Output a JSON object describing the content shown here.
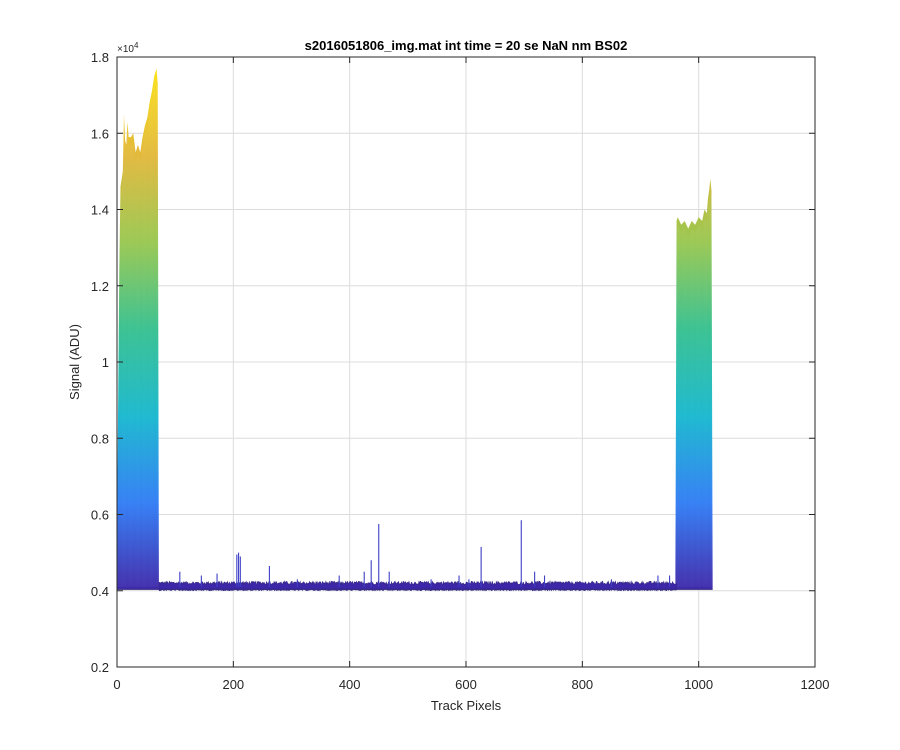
{
  "chart_data": {
    "type": "line",
    "title": "s2016051806_img.mat int time = 20 se  NaN nm BS02",
    "xlabel": "Track Pixels",
    "ylabel": "Signal (ADU)",
    "xlim": [
      0,
      1200
    ],
    "ylim": [
      2000,
      18000
    ],
    "y_multiplier": "×10",
    "y_multiplier_exp": "4",
    "x_ticks": [
      0,
      200,
      400,
      600,
      800,
      1000,
      1200
    ],
    "x_tick_labels": [
      "0",
      "200",
      "400",
      "600",
      "800",
      "1000",
      "1200"
    ],
    "y_ticks": [
      2000,
      4000,
      6000,
      8000,
      10000,
      12000,
      14000,
      16000,
      18000
    ],
    "y_tick_labels": [
      "0.2",
      "0.4",
      "0.6",
      "0.8",
      "1",
      "1.2",
      "1.4",
      "1.6",
      "1.8"
    ],
    "grid": true,
    "colormap": [
      "#3e26a8",
      "#2f7bf5",
      "#16b7cf",
      "#34c08f",
      "#98c74f",
      "#e2b83a",
      "#fbe21a"
    ],
    "baseline_level": 4100,
    "regions": [
      {
        "name": "left",
        "x_start": 0,
        "x_end": 72,
        "envelope_x": [
          0,
          2,
          4,
          6,
          8,
          10,
          12,
          14,
          16,
          18,
          20,
          24,
          28,
          32,
          36,
          40,
          44,
          48,
          52,
          56,
          60,
          64,
          66,
          68,
          70,
          72
        ],
        "envelope_y": [
          5600,
          9000,
          12500,
          14600,
          14800,
          15000,
          16500,
          15800,
          15700,
          16300,
          15900,
          15900,
          16000,
          15500,
          15700,
          15500,
          15900,
          16200,
          16400,
          16800,
          17100,
          17500,
          17600,
          17700,
          17300,
          4300
        ]
      },
      {
        "name": "right",
        "x_start": 960,
        "x_end": 1024,
        "envelope_x": [
          960,
          962,
          964,
          970,
          976,
          982,
          988,
          994,
          1000,
          1006,
          1010,
          1014,
          1016,
          1018,
          1020,
          1022,
          1024
        ],
        "envelope_y": [
          4400,
          13700,
          13800,
          13600,
          13700,
          13500,
          13700,
          13600,
          13800,
          13700,
          14000,
          13900,
          14300,
          14500,
          14800,
          14500,
          4300
        ]
      }
    ],
    "spikes": [
      {
        "x": 108,
        "y": 4500
      },
      {
        "x": 145,
        "y": 4400
      },
      {
        "x": 172,
        "y": 4450
      },
      {
        "x": 206,
        "y": 4950
      },
      {
        "x": 209,
        "y": 5000
      },
      {
        "x": 212,
        "y": 4900
      },
      {
        "x": 262,
        "y": 4650
      },
      {
        "x": 310,
        "y": 4300
      },
      {
        "x": 382,
        "y": 4400
      },
      {
        "x": 425,
        "y": 4500
      },
      {
        "x": 437,
        "y": 4800
      },
      {
        "x": 450,
        "y": 5750
      },
      {
        "x": 468,
        "y": 4500
      },
      {
        "x": 540,
        "y": 4300
      },
      {
        "x": 588,
        "y": 4400
      },
      {
        "x": 605,
        "y": 4300
      },
      {
        "x": 626,
        "y": 5150
      },
      {
        "x": 695,
        "y": 5850
      },
      {
        "x": 718,
        "y": 4500
      },
      {
        "x": 735,
        "y": 4400
      },
      {
        "x": 850,
        "y": 4300
      },
      {
        "x": 930,
        "y": 4400
      },
      {
        "x": 950,
        "y": 4400
      }
    ]
  }
}
